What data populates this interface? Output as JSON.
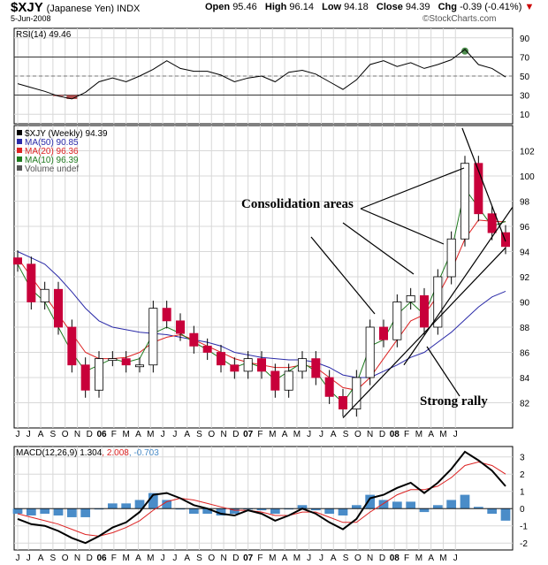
{
  "header": {
    "symbol": "$XJY",
    "symbol_desc": "(Japanese Yen) INDX",
    "date": "5-Jun-2008",
    "open_label": "Open",
    "open": "95.46",
    "high_label": "High",
    "high": "96.14",
    "low_label": "Low",
    "low": "94.18",
    "close_label": "Close",
    "close": "94.39",
    "chg_label": "Chg",
    "chg": "-0.39 (-0.41%)",
    "chg_arrow": "▼",
    "source": "©StockCharts.com"
  },
  "colors": {
    "ma50": "#2a2aa8",
    "ma20": "#dd2222",
    "ma10": "#1e7a1e",
    "up": "#ffffff",
    "down": "#c8003a",
    "macd": "#000000",
    "signal": "#dd2222",
    "hist": "#4a8cc8",
    "rsi_over": "#4c8c4c",
    "rsi_under": "#b04c4c"
  },
  "chart_data": [
    {
      "type": "line",
      "panel": "rsi",
      "legend": "RSI(14) 49.46",
      "ylim": [
        0,
        100
      ],
      "yticks": [
        10,
        30,
        50,
        70,
        90
      ],
      "reference_lines": [
        30,
        70
      ],
      "x": [
        "2005-06",
        "2005-07",
        "2005-08",
        "2005-09",
        "2005-10",
        "2005-11",
        "2005-12",
        "2006-01",
        "2006-02",
        "2006-03",
        "2006-04",
        "2006-05",
        "2006-06",
        "2006-07",
        "2006-08",
        "2006-09",
        "2006-10",
        "2006-11",
        "2006-12",
        "2007-01",
        "2007-02",
        "2007-03",
        "2007-04",
        "2007-05",
        "2007-06",
        "2007-07",
        "2007-08",
        "2007-09",
        "2007-10",
        "2007-11",
        "2007-12",
        "2008-01",
        "2008-02",
        "2008-03",
        "2008-04",
        "2008-05",
        "2008-06"
      ],
      "values": [
        42,
        38,
        34,
        29,
        26,
        33,
        44,
        48,
        44,
        50,
        57,
        66,
        58,
        55,
        55,
        51,
        44,
        48,
        50,
        44,
        54,
        56,
        52,
        44,
        36,
        46,
        62,
        66,
        60,
        64,
        58,
        62,
        67,
        78,
        62,
        58,
        49
      ]
    },
    {
      "type": "candlestick",
      "panel": "price",
      "legend": [
        {
          "name": "$XJY (Weekly) 94.39",
          "key": "price"
        },
        {
          "name": "MA(50) 90.85",
          "key": "ma50"
        },
        {
          "name": "MA(20) 96.36",
          "key": "ma20"
        },
        {
          "name": "MA(10) 96.39",
          "key": "ma10"
        },
        {
          "name": "Volume undef",
          "key": "volume"
        }
      ],
      "ylim": [
        80,
        104
      ],
      "yticks": [
        82,
        84,
        86,
        88,
        90,
        92,
        94,
        96,
        98,
        100,
        102
      ],
      "x": [
        "2005-06",
        "2005-07",
        "2005-08",
        "2005-09",
        "2005-10",
        "2005-11",
        "2005-12",
        "2006-01",
        "2006-02",
        "2006-03",
        "2006-04",
        "2006-05",
        "2006-06",
        "2006-07",
        "2006-08",
        "2006-09",
        "2006-10",
        "2006-11",
        "2006-12",
        "2007-01",
        "2007-02",
        "2007-03",
        "2007-04",
        "2007-05",
        "2007-06",
        "2007-07",
        "2007-08",
        "2007-09",
        "2007-10",
        "2007-11",
        "2007-12",
        "2008-01",
        "2008-02",
        "2008-03",
        "2008-04",
        "2008-05",
        "2008-06"
      ],
      "close": [
        93.0,
        90.0,
        91.0,
        88.0,
        85.0,
        83.0,
        85.5,
        85.5,
        85.0,
        85.0,
        89.5,
        88.5,
        87.5,
        86.5,
        86.0,
        85.0,
        84.5,
        85.5,
        84.5,
        83.0,
        84.5,
        85.5,
        84.0,
        82.5,
        81.5,
        84.0,
        88.0,
        87.0,
        90.0,
        90.5,
        88.0,
        92.0,
        95.0,
        101.0,
        97.0,
        95.5,
        94.4
      ],
      "ma50": [
        94.0,
        93.5,
        93.0,
        92.0,
        90.8,
        89.5,
        88.5,
        88.0,
        87.8,
        87.6,
        87.5,
        87.4,
        87.2,
        87.0,
        86.8,
        86.5,
        86.0,
        85.8,
        85.6,
        85.5,
        85.4,
        85.4,
        85.2,
        84.8,
        84.2,
        84.0,
        84.0,
        84.5,
        85.0,
        85.6,
        86.0,
        86.8,
        87.6,
        88.6,
        89.6,
        90.4,
        90.85
      ],
      "ma20": [
        93.5,
        92.0,
        90.5,
        89.0,
        87.5,
        86.0,
        85.5,
        85.5,
        85.6,
        86.0,
        86.8,
        87.2,
        87.4,
        87.0,
        86.5,
        86.0,
        85.5,
        85.2,
        85.0,
        84.8,
        84.8,
        85.0,
        84.8,
        84.0,
        83.2,
        83.0,
        84.0,
        85.5,
        87.0,
        88.5,
        89.0,
        90.5,
        92.5,
        95.0,
        96.5,
        96.4,
        96.36
      ],
      "ma10": [
        93.0,
        91.0,
        90.0,
        88.0,
        86.0,
        84.5,
        85.0,
        85.5,
        85.2,
        85.5,
        87.5,
        88.0,
        87.5,
        86.8,
        86.2,
        85.5,
        84.8,
        85.2,
        84.8,
        83.8,
        84.5,
        85.2,
        84.5,
        83.0,
        82.0,
        83.5,
        86.5,
        87.0,
        89.0,
        90.0,
        89.0,
        91.5,
        94.0,
        99.0,
        97.5,
        96.0,
        96.39
      ]
    },
    {
      "type": "line",
      "panel": "macd",
      "legend_label": "MACD(12,26,9)",
      "legend_values": [
        "1.304",
        "2.008",
        "-0.703"
      ],
      "ylim": [
        -2.4,
        3.6
      ],
      "yticks": [
        -2,
        -1,
        0,
        1,
        2,
        3
      ],
      "x": [
        "2005-06",
        "2005-07",
        "2005-08",
        "2005-09",
        "2005-10",
        "2005-11",
        "2005-12",
        "2006-01",
        "2006-02",
        "2006-03",
        "2006-04",
        "2006-05",
        "2006-06",
        "2006-07",
        "2006-08",
        "2006-09",
        "2006-10",
        "2006-11",
        "2006-12",
        "2007-01",
        "2007-02",
        "2007-03",
        "2007-04",
        "2007-05",
        "2007-06",
        "2007-07",
        "2007-08",
        "2007-09",
        "2007-10",
        "2007-11",
        "2007-12",
        "2008-01",
        "2008-02",
        "2008-03",
        "2008-04",
        "2008-05",
        "2008-06"
      ],
      "macd": [
        -0.6,
        -0.9,
        -1.0,
        -1.3,
        -1.7,
        -2.0,
        -1.6,
        -1.1,
        -0.8,
        -0.2,
        0.8,
        0.9,
        0.6,
        0.2,
        0.0,
        -0.3,
        -0.4,
        -0.1,
        -0.3,
        -0.7,
        -0.4,
        0.0,
        -0.3,
        -0.8,
        -1.2,
        -0.6,
        0.6,
        0.8,
        1.2,
        1.5,
        0.9,
        1.5,
        2.3,
        3.3,
        2.8,
        2.2,
        1.3
      ],
      "signal": [
        -0.3,
        -0.5,
        -0.7,
        -0.9,
        -1.2,
        -1.5,
        -1.6,
        -1.4,
        -1.1,
        -0.7,
        -0.1,
        0.4,
        0.6,
        0.5,
        0.3,
        0.1,
        -0.1,
        -0.1,
        -0.2,
        -0.4,
        -0.4,
        -0.2,
        -0.2,
        -0.5,
        -0.8,
        -0.8,
        -0.2,
        0.3,
        0.8,
        1.1,
        1.1,
        1.3,
        1.8,
        2.5,
        2.7,
        2.5,
        2.0
      ],
      "histogram": [
        -0.3,
        -0.4,
        -0.3,
        -0.4,
        -0.5,
        -0.5,
        0.0,
        0.3,
        0.3,
        0.5,
        0.9,
        0.5,
        0.0,
        -0.3,
        -0.3,
        -0.4,
        -0.3,
        0.0,
        -0.1,
        -0.3,
        0.0,
        0.2,
        -0.1,
        -0.3,
        -0.4,
        0.2,
        0.8,
        0.5,
        0.4,
        0.4,
        -0.2,
        0.2,
        0.5,
        0.8,
        0.1,
        -0.3,
        -0.7
      ]
    }
  ],
  "x_axis": {
    "labels": [
      {
        "t": "J",
        "i": 0
      },
      {
        "t": "J",
        "i": 0.8
      },
      {
        "t": "A",
        "i": 1.7
      },
      {
        "t": "S",
        "i": 2.6
      },
      {
        "t": "O",
        "i": 3.5
      },
      {
        "t": "N",
        "i": 4.4
      },
      {
        "t": "D",
        "i": 5.3
      },
      {
        "t": "06",
        "i": 6.2,
        "bold": true
      },
      {
        "t": "F",
        "i": 7.1
      },
      {
        "t": "M",
        "i": 8.0
      },
      {
        "t": "A",
        "i": 8.9
      },
      {
        "t": "M",
        "i": 9.8
      },
      {
        "t": "J",
        "i": 10.7
      },
      {
        "t": "J",
        "i": 11.6
      },
      {
        "t": "A",
        "i": 12.5
      },
      {
        "t": "S",
        "i": 13.4
      },
      {
        "t": "O",
        "i": 14.3
      },
      {
        "t": "N",
        "i": 15.2
      },
      {
        "t": "D",
        "i": 16.1
      },
      {
        "t": "07",
        "i": 17.0,
        "bold": true
      },
      {
        "t": "F",
        "i": 17.9
      },
      {
        "t": "M",
        "i": 18.8
      },
      {
        "t": "A",
        "i": 19.7
      },
      {
        "t": "M",
        "i": 20.6
      },
      {
        "t": "J",
        "i": 21.5
      },
      {
        "t": "J",
        "i": 22.4
      },
      {
        "t": "A",
        "i": 23.3
      },
      {
        "t": "S",
        "i": 24.2
      },
      {
        "t": "O",
        "i": 25.1
      },
      {
        "t": "N",
        "i": 26.0
      },
      {
        "t": "D",
        "i": 26.9
      },
      {
        "t": "08",
        "i": 27.8,
        "bold": true
      },
      {
        "t": "F",
        "i": 28.7
      },
      {
        "t": "M",
        "i": 29.6
      },
      {
        "t": "A",
        "i": 30.5
      },
      {
        "t": "M",
        "i": 31.4
      },
      {
        "t": "J",
        "i": 32.3
      }
    ]
  },
  "annotations": {
    "consolidation": "Consolidation areas",
    "rally": "Strong rally"
  }
}
